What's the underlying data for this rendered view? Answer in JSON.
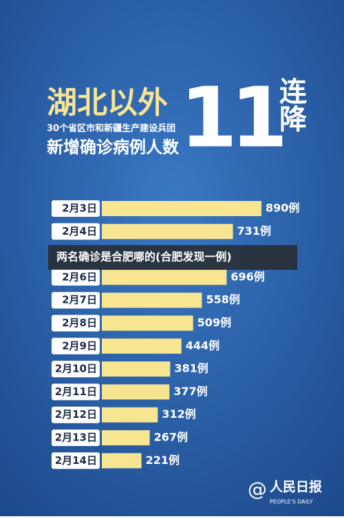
{
  "header": {
    "line1": "湖北以外",
    "line2": "30个省区市和新疆生产建设兵团",
    "line3": "新增确诊病例人数",
    "big": "11",
    "side": "连降"
  },
  "chart_data": {
    "type": "bar",
    "orientation": "horizontal",
    "color": "#f8e592",
    "categories": [
      "2月3日",
      "2月4日",
      null,
      "2月6日",
      "2月7日",
      "2月8日",
      "2月9日",
      "2月10日",
      "2月11日",
      "2月12日",
      "2月13日",
      "2月14日"
    ],
    "values": [
      890,
      731,
      null,
      696,
      558,
      509,
      444,
      381,
      377,
      312,
      267,
      221
    ],
    "value_labels": [
      "890例",
      "731例",
      null,
      "696例",
      "558例",
      "509例",
      "444例",
      "381例",
      "377例",
      "312例",
      "267例",
      "221例"
    ]
  },
  "banner": "两名确诊是合肥哪的(合肥发现一例)",
  "logo": {
    "name": "人民日报",
    "en": "PEOPLE'S DAILY"
  }
}
